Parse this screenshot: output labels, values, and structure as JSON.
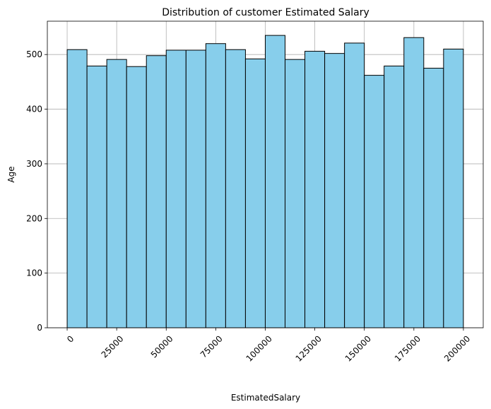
{
  "chart_data": {
    "type": "bar",
    "subtype": "histogram",
    "title": "Distribution of customer Estimated Salary",
    "xlabel": "EstimatedSalary",
    "ylabel": "Age",
    "bin_edges": [
      11.58,
      10009.69,
      20007.79,
      30005.9,
      40004.0,
      50002.1,
      60000.21,
      69998.31,
      79996.42,
      89994.52,
      99992.62,
      109990.73,
      119988.83,
      129986.94,
      139985.04,
      149983.14,
      159981.25,
      169979.35,
      179977.46,
      189975.56,
      199973.66
    ],
    "values": [
      509,
      479,
      491,
      478,
      498,
      508,
      508,
      520,
      509,
      492,
      535,
      491,
      506,
      502,
      521,
      462,
      479,
      531,
      475,
      510
    ],
    "xlim": [
      -10000,
      210000
    ],
    "ylim": [
      0,
      561
    ],
    "x_ticks": [
      0,
      25000,
      50000,
      75000,
      100000,
      125000,
      150000,
      175000,
      200000
    ],
    "x_tick_labels": [
      "0",
      "25000",
      "50000",
      "75000",
      "100000",
      "125000",
      "150000",
      "175000",
      "200000"
    ],
    "x_tick_rotation": 45,
    "y_ticks": [
      0,
      100,
      200,
      300,
      400,
      500
    ],
    "y_tick_labels": [
      "0",
      "100",
      "200",
      "300",
      "400",
      "500"
    ],
    "grid": true,
    "bar_color": "#87ceeb",
    "edge_color": "#000000",
    "grid_color": "#b0b0b0"
  }
}
